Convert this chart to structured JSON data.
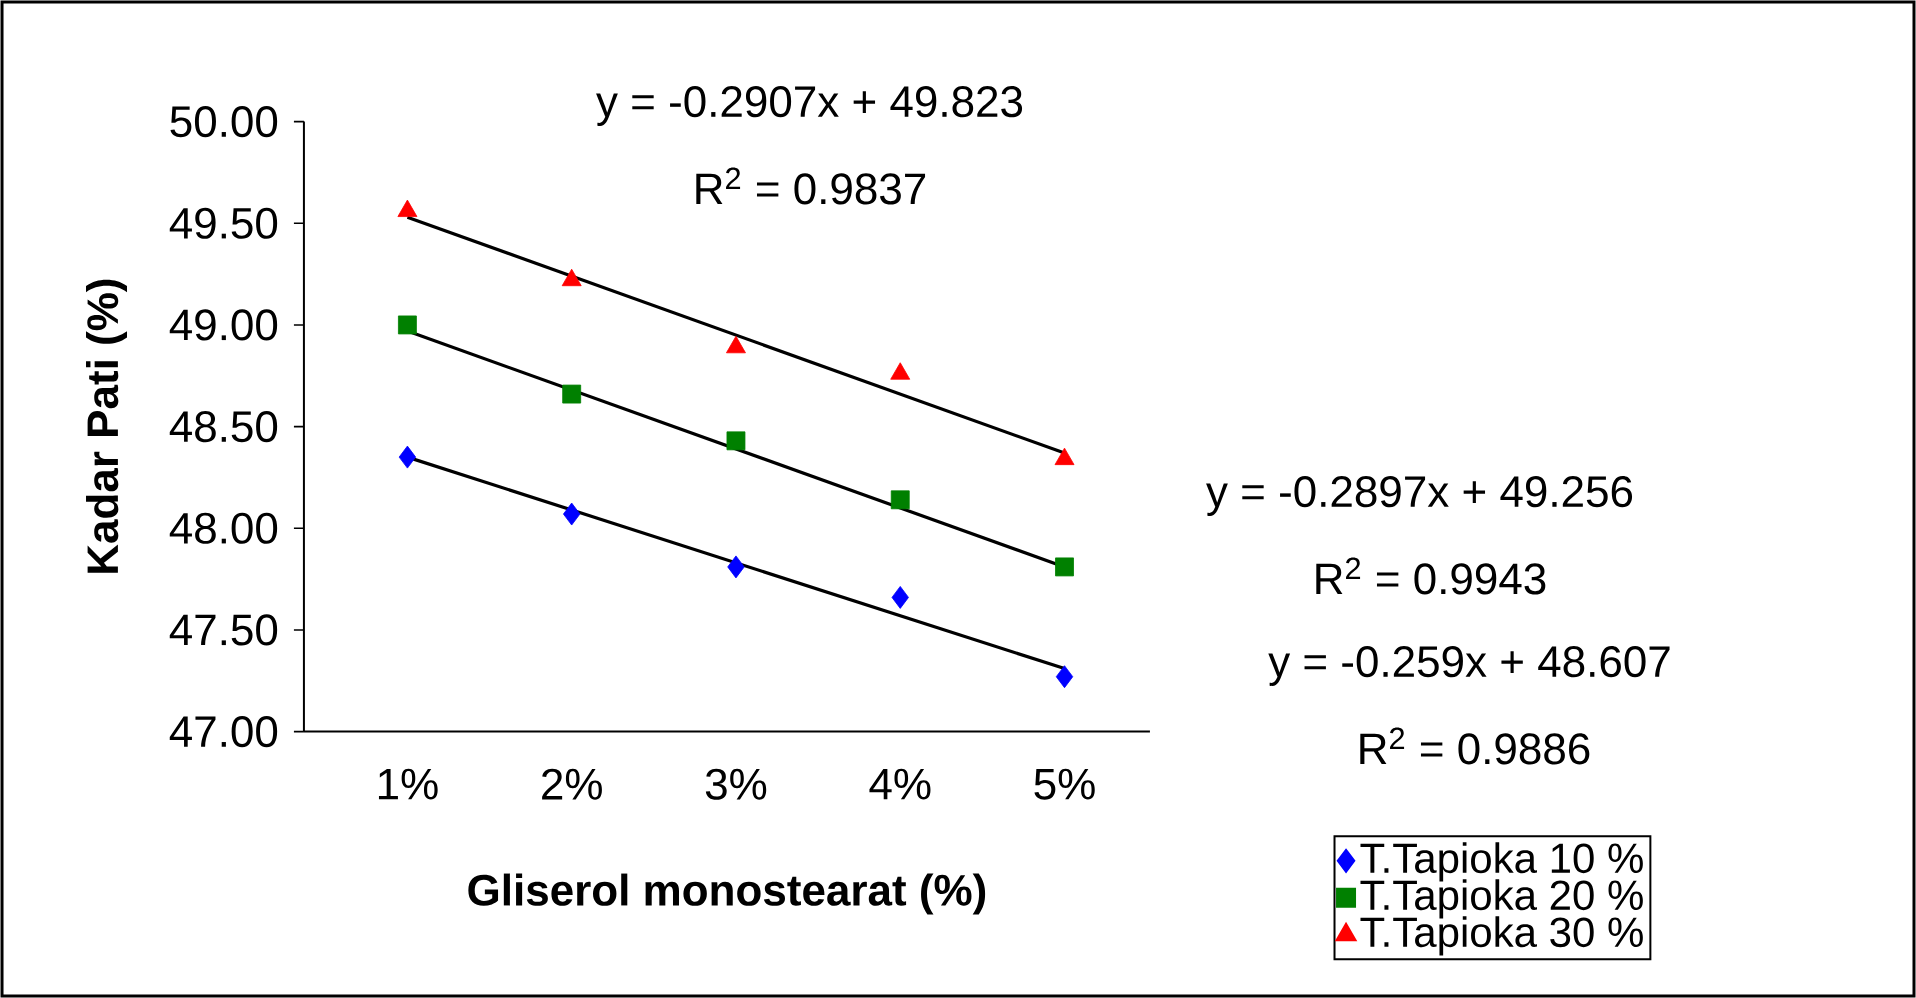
{
  "chart_data": {
    "type": "scatter",
    "xlabel": "Gliserol monostearat (%)",
    "ylabel": "Kadar Pati (%)",
    "categories": [
      "1%",
      "2%",
      "3%",
      "4%",
      "5%"
    ],
    "ylim": [
      47,
      50
    ],
    "yticks": [
      {
        "value": 47,
        "label": "47.00"
      },
      {
        "value": 47.5,
        "label": "47.50"
      },
      {
        "value": 48,
        "label": "48.00"
      },
      {
        "value": 48.5,
        "label": "48.50"
      },
      {
        "value": 49,
        "label": "49.00"
      },
      {
        "value": 49.5,
        "label": "49.50"
      },
      {
        "value": 50,
        "label": "50.00"
      }
    ],
    "series": [
      {
        "name": "T.Tapioka 10 %",
        "marker": "diamond",
        "color": "#0000ff",
        "values": [
          48.35,
          48.07,
          47.81,
          47.66,
          47.27
        ]
      },
      {
        "name": "T.Tapioka 20 %",
        "marker": "square",
        "color": "#008000",
        "values": [
          49.0,
          48.66,
          48.43,
          48.14,
          47.81
        ]
      },
      {
        "name": "T.Tapioka 30 %",
        "marker": "triangle",
        "color": "#ff0000",
        "values": [
          49.56,
          49.22,
          48.89,
          48.76,
          48.34
        ]
      },
      {
        "type": "line",
        "marker": "none",
        "color": "#000000",
        "x": [
          "1%",
          "5%"
        ],
        "values": [
          48.35,
          47.31
        ]
      },
      {
        "type": "line",
        "marker": "none",
        "color": "#000000",
        "x": [
          "1%",
          "5%"
        ],
        "values": [
          48.97,
          47.81
        ]
      },
      {
        "type": "line",
        "marker": "none",
        "color": "#000000",
        "x": [
          "1%",
          "5%"
        ],
        "values": [
          49.53,
          48.37
        ]
      }
    ],
    "annotations": [
      "y = -0.2907x + 49.823",
      "R$^{2}$ = 0.9837",
      "y = -0.2897x + 49.256",
      "R$^{2}$ = 0.9943",
      "y = -0.259x + 48.607",
      "R$^{2}$ = 0.9886"
    ],
    "legend": "bottom right",
    "grid": false
  }
}
